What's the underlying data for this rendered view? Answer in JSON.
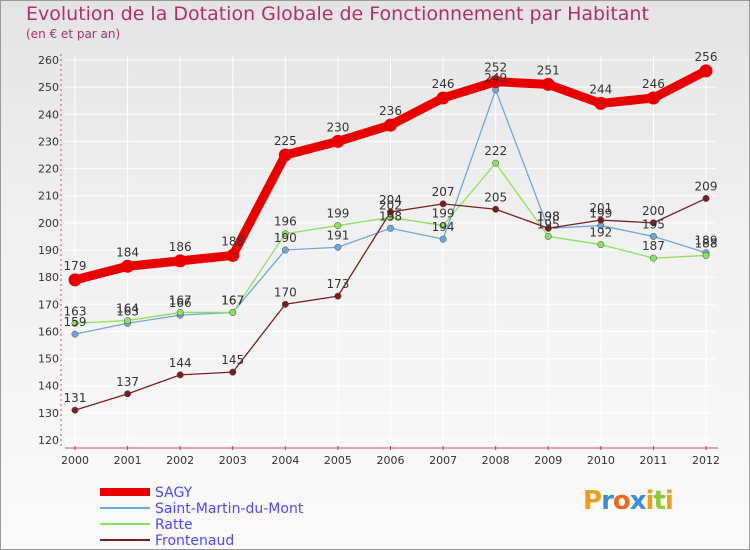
{
  "chart_data": {
    "type": "line",
    "title": "Evolution de la Dotation Globale de Fonctionnement par Habitant",
    "subtitle": "(en € et par an)",
    "x": [
      2000,
      2001,
      2002,
      2003,
      2004,
      2005,
      2006,
      2007,
      2008,
      2009,
      2010,
      2011,
      2012
    ],
    "ylim": [
      120,
      260
    ],
    "yticks": [
      120,
      130,
      140,
      150,
      160,
      170,
      180,
      190,
      200,
      210,
      220,
      230,
      240,
      250,
      260
    ],
    "series": [
      {
        "name": "SAGY",
        "color": "#e80000",
        "width": 9,
        "values": [
          179,
          184,
          186,
          188,
          225,
          230,
          236,
          246,
          252,
          251,
          244,
          246,
          256
        ]
      },
      {
        "name": "Saint-Martin-du-Mont",
        "color": "#6fa8d8",
        "width": 1.3,
        "values": [
          159,
          163,
          166,
          167,
          190,
          191,
          198,
          194,
          249,
          198,
          199,
          195,
          189
        ]
      },
      {
        "name": "Ratte",
        "color": "#8fe060",
        "width": 1.3,
        "values": [
          163,
          164,
          167,
          167,
          196,
          199,
          202,
          199,
          222,
          195,
          192,
          187,
          188
        ]
      },
      {
        "name": "Frontenaud",
        "color": "#7a1f1f",
        "width": 1.3,
        "values": [
          131,
          137,
          144,
          145,
          170,
          173,
          204,
          207,
          205,
          198,
          201,
          200,
          209
        ]
      }
    ]
  },
  "brand": {
    "text": "Proxiti"
  }
}
